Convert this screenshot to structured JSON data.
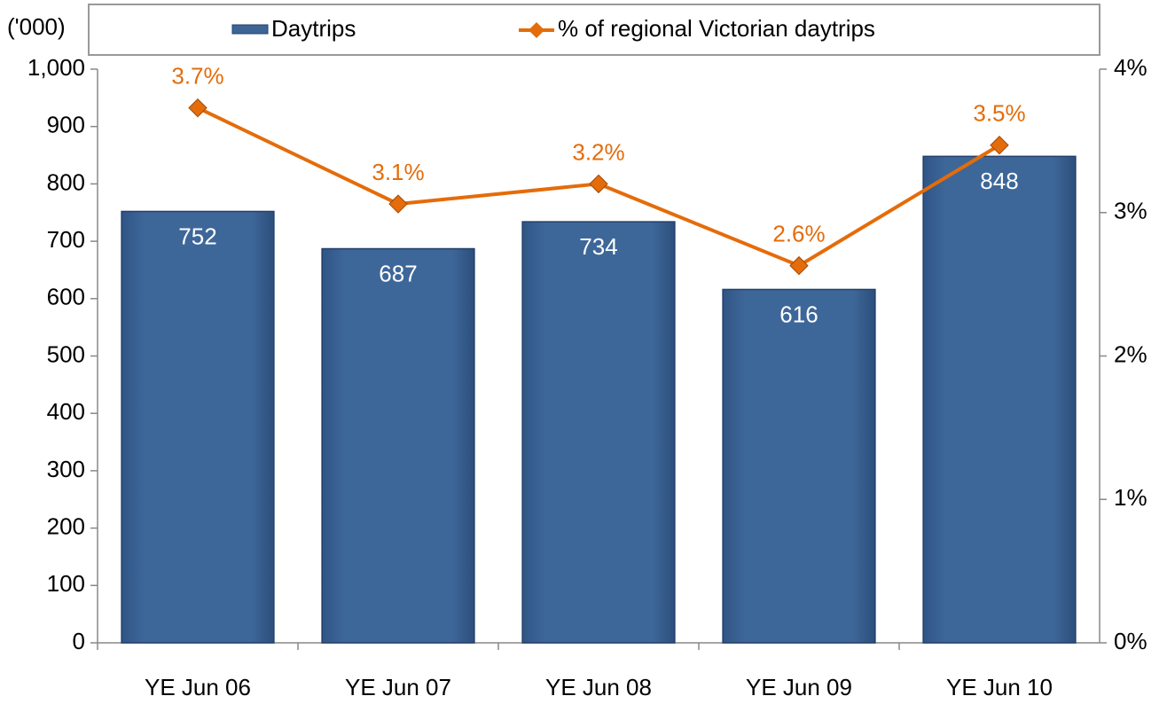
{
  "chart_data": {
    "type": "bar_line",
    "y_axis_label": "('000)",
    "categories": [
      "YE Jun 06",
      "YE Jun 07",
      "YE Jun 08",
      "YE Jun 09",
      "YE Jun 10"
    ],
    "series": [
      {
        "name": "Daytrips",
        "type": "bar",
        "color": "#3d6697",
        "values": [
          752,
          687,
          734,
          616,
          848
        ]
      },
      {
        "name": "% of regional Victorian daytrips",
        "type": "line",
        "axis": "y2",
        "color": "#e46c0a",
        "values": [
          3.73,
          3.06,
          3.2,
          2.63,
          3.47
        ],
        "value_labels": [
          "3.7%",
          "3.1%",
          "3.2%",
          "2.6%",
          "3.5%"
        ]
      }
    ],
    "ylim": [
      0,
      1000
    ],
    "yticks": [
      0,
      100,
      200,
      300,
      400,
      500,
      600,
      700,
      800,
      900,
      {
        "value": 1000,
        "label": "1,000"
      }
    ],
    "y2lim": [
      0,
      4
    ],
    "y2ticks": [
      {
        "value": 0,
        "label": "0%"
      },
      {
        "value": 1,
        "label": "1%"
      },
      {
        "value": 2,
        "label": "2%"
      },
      {
        "value": 3,
        "label": "3%"
      },
      {
        "value": 4,
        "label": "4%"
      }
    ],
    "legend": "top"
  }
}
